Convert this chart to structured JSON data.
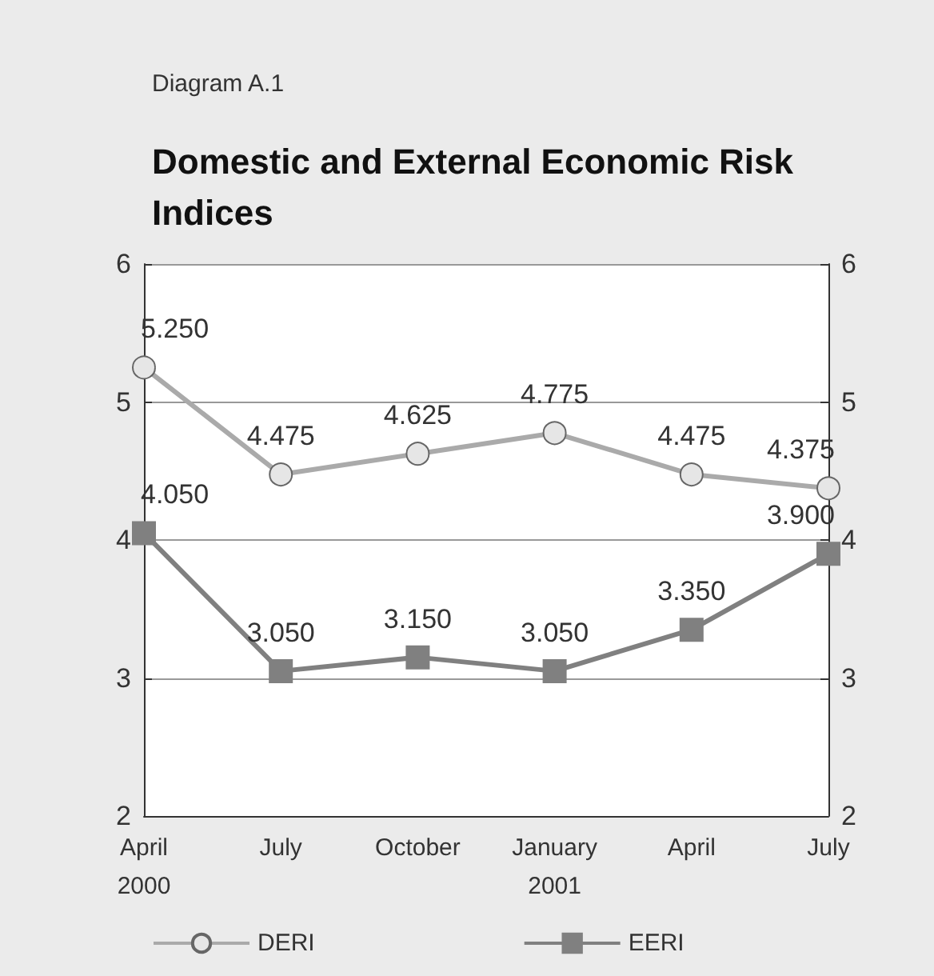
{
  "chart_data": {
    "type": "line",
    "subtitle": "Diagram A.1",
    "title": "Domestic and External Economic Risk Indices",
    "categories": [
      "April\n2000",
      "July",
      "October",
      "January\n2001",
      "April",
      "July"
    ],
    "series": [
      {
        "name": "DERI",
        "color": "#aaaaaa",
        "marker": "circle",
        "values": [
          5.25,
          4.475,
          4.625,
          4.775,
          4.475,
          4.375
        ],
        "value_labels": [
          "5.250",
          "4.475",
          "4.625",
          "4.775",
          "4.475",
          "4.375"
        ]
      },
      {
        "name": "EERI",
        "color": "#808080",
        "marker": "square",
        "values": [
          4.05,
          3.05,
          3.15,
          3.05,
          3.35,
          3.9
        ],
        "value_labels": [
          "4.050",
          "3.050",
          "3.150",
          "3.050",
          "3.350",
          "3.900"
        ]
      }
    ],
    "ylim": [
      2,
      6
    ],
    "yticks": [
      2,
      3,
      4,
      5,
      6
    ],
    "y2lim": [
      2,
      6
    ],
    "y2ticks": [
      2,
      3,
      4,
      5,
      6
    ],
    "grid": "y",
    "legend": "bottom",
    "line_style": "solid"
  }
}
